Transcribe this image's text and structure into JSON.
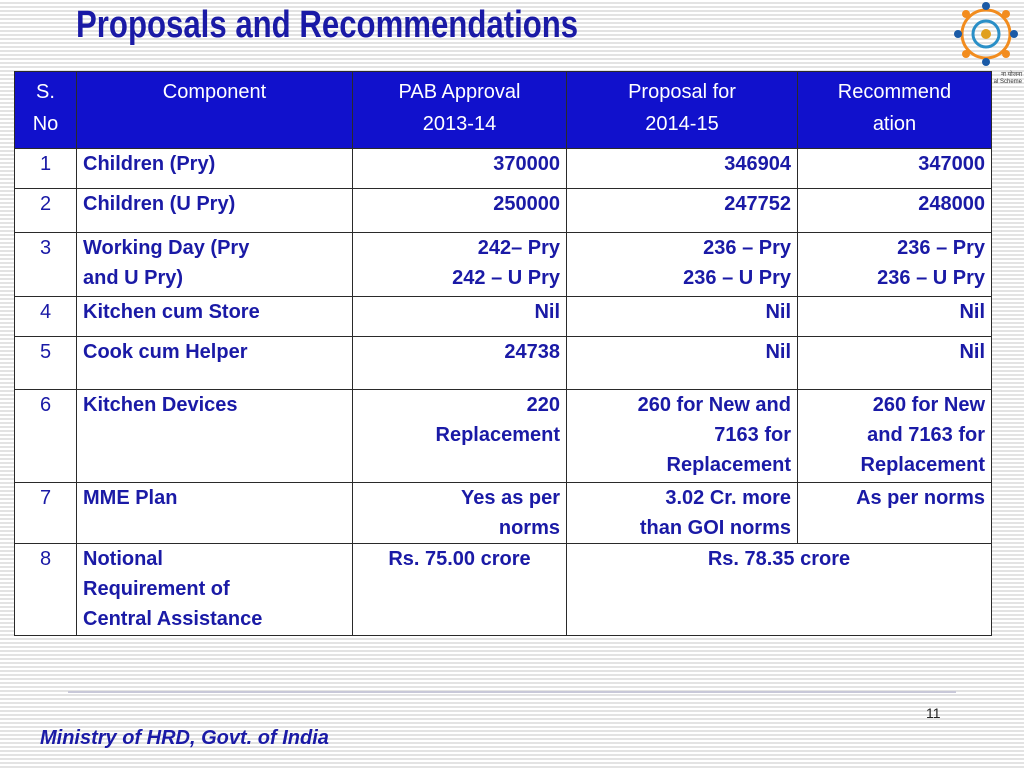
{
  "title": "Proposals and Recommendations",
  "logo": {
    "caption_line1": "ना योजना",
    "caption_line2": "al Scheme"
  },
  "table": {
    "headers": [
      "S. No",
      "Component",
      "PAB Approval 2013-14",
      "Proposal for 2014-15",
      "Recommendation"
    ],
    "header_lines": {
      "sno": [
        "S.",
        "No"
      ],
      "component": [
        "Component"
      ],
      "pab": [
        "PAB Approval",
        "2013-14"
      ],
      "proposal": [
        "Proposal for",
        "2014-15"
      ],
      "recommendation": [
        "Recommend",
        "ation"
      ]
    },
    "rows": [
      {
        "sno": "1",
        "component": [
          "Children (Pry)"
        ],
        "pab": [
          "370000"
        ],
        "proposal": [
          "346904"
        ],
        "recommendation": [
          "347000"
        ]
      },
      {
        "sno": "2",
        "component": [
          "Children (U Pry)"
        ],
        "pab": [
          "250000"
        ],
        "proposal": [
          "247752"
        ],
        "recommendation": [
          "248000"
        ]
      },
      {
        "sno": "3",
        "component": [
          "Working Day (Pry",
          "and U Pry)"
        ],
        "pab": [
          "242– Pry",
          "242 – U Pry"
        ],
        "proposal": [
          "236 – Pry",
          "236 – U Pry"
        ],
        "recommendation": [
          "236 – Pry",
          "236 – U Pry"
        ]
      },
      {
        "sno": "4",
        "component": [
          "Kitchen cum Store"
        ],
        "pab": [
          "Nil"
        ],
        "proposal": [
          "Nil"
        ],
        "recommendation": [
          "Nil"
        ]
      },
      {
        "sno": "5",
        "component": [
          "Cook cum Helper"
        ],
        "pab": [
          "24738"
        ],
        "proposal": [
          "Nil"
        ],
        "recommendation": [
          "Nil"
        ]
      },
      {
        "sno": "6",
        "component": [
          "Kitchen Devices"
        ],
        "pab": [
          "220",
          "Replacement"
        ],
        "proposal": [
          "260 for New and",
          "7163 for",
          "Replacement"
        ],
        "recommendation": [
          "260 for New",
          "and 7163 for",
          "Replacement"
        ]
      },
      {
        "sno": "7",
        "component": [
          "MME Plan"
        ],
        "pab": [
          "Yes as per",
          "norms"
        ],
        "proposal": [
          "3.02 Cr. more",
          "than GOI norms"
        ],
        "recommendation": [
          "As per norms"
        ]
      },
      {
        "sno": "8",
        "component": [
          "Notional",
          "Requirement of",
          "Central Assistance"
        ],
        "pab": [
          "Rs. 75.00 crore"
        ],
        "proposal_recommendation_merged": "Rs. 78.35 crore"
      }
    ]
  },
  "page_number": "11",
  "footer": "Ministry of HRD, Govt. of India",
  "colors": {
    "title": "#1a1aa6",
    "header_bg": "#1111cc",
    "body_text": "#1a1aa6"
  }
}
